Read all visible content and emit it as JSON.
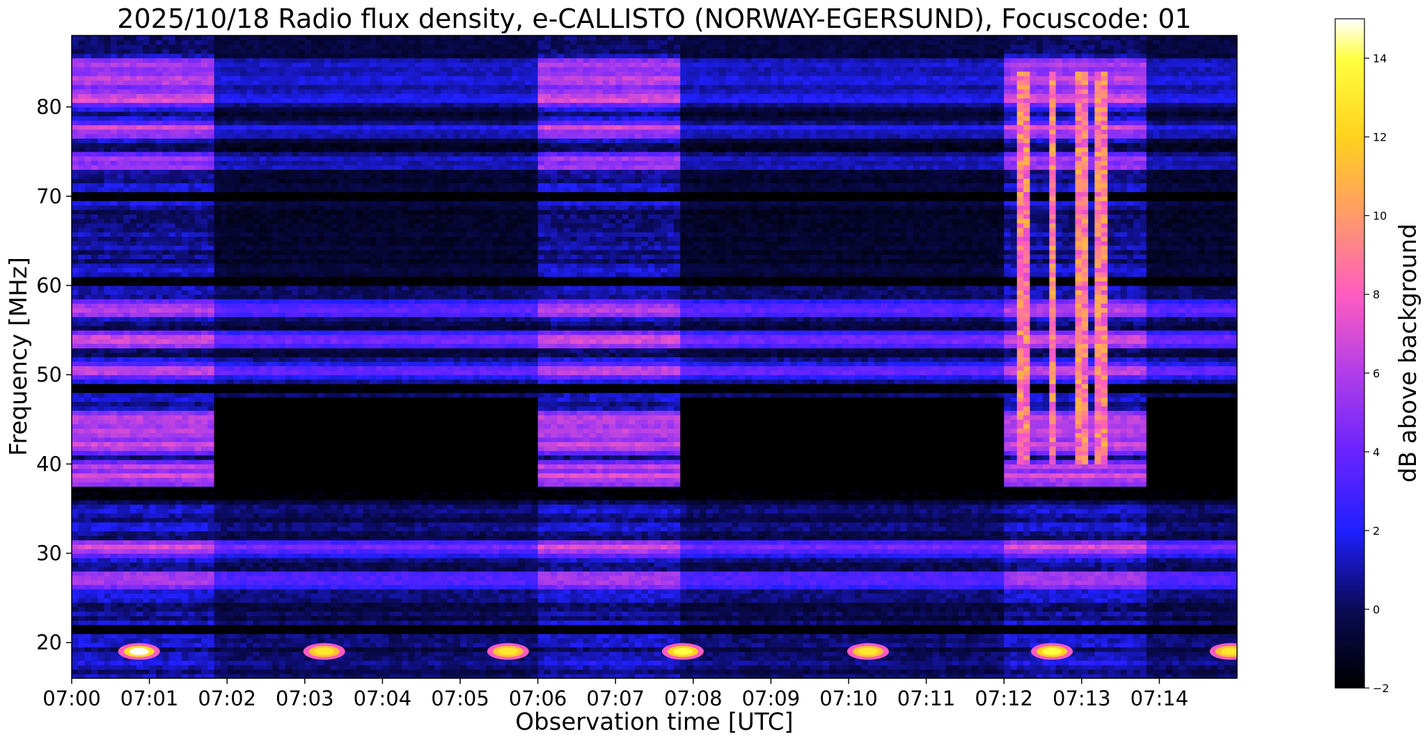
{
  "chart_data": {
    "type": "heatmap",
    "title": "2025/10/18  Radio flux density, e-CALLISTO (NORWAY-EGERSUND), Focuscode: 01",
    "xlabel": "Observation time [UTC]",
    "ylabel": "Frequency [MHz]",
    "xlim": [
      "07:00:00",
      "07:15:00"
    ],
    "ylim": [
      16,
      88
    ],
    "x_ticks": [
      "07:00",
      "07:01",
      "07:02",
      "07:03",
      "07:04",
      "07:05",
      "07:06",
      "07:07",
      "07:08",
      "07:09",
      "07:10",
      "07:11",
      "07:12",
      "07:13",
      "07:14"
    ],
    "y_ticks": [
      20,
      30,
      40,
      50,
      60,
      70,
      80
    ],
    "grid": false,
    "colormap": "gnuplot2",
    "colorbar": {
      "label": "dB above background",
      "range": [
        -2,
        15
      ],
      "ticks": [
        -2,
        0,
        2,
        4,
        6,
        8,
        10,
        12,
        14
      ],
      "placement": "right"
    },
    "bright_segments": [
      {
        "start": "07:00:00",
        "end": "07:01:51"
      },
      {
        "start": "07:06:00",
        "end": "07:07:51"
      },
      {
        "start": "07:12:00",
        "end": "07:13:51"
      }
    ],
    "dark_segments": [
      {
        "start": "07:01:51",
        "end": "07:06:00"
      },
      {
        "start": "07:07:51",
        "end": "07:12:00"
      },
      {
        "start": "07:13:51",
        "end": "07:15:00"
      }
    ],
    "bright_bands_mhz": [
      84.5,
      83,
      81,
      77.5,
      74,
      57.5,
      54,
      50.5,
      45,
      43.5,
      42,
      39.5,
      38.5,
      30.5,
      27
    ],
    "hot_spots": [
      {
        "time": "07:00:52",
        "freq": 19,
        "db": 15
      },
      {
        "time": "07:03:15",
        "freq": 19,
        "db": 13
      },
      {
        "time": "07:05:37",
        "freq": 19,
        "db": 13
      },
      {
        "time": "07:07:52",
        "freq": 19,
        "db": 14
      },
      {
        "time": "07:10:15",
        "freq": 19,
        "db": 13
      },
      {
        "time": "07:12:37",
        "freq": 19,
        "db": 14
      },
      {
        "time": "07:14:55",
        "freq": 19,
        "db": 13
      }
    ],
    "burst_event": {
      "start": "07:12:00",
      "end": "07:13:30",
      "freq_range": [
        40,
        84
      ],
      "peak_db": 12
    }
  }
}
